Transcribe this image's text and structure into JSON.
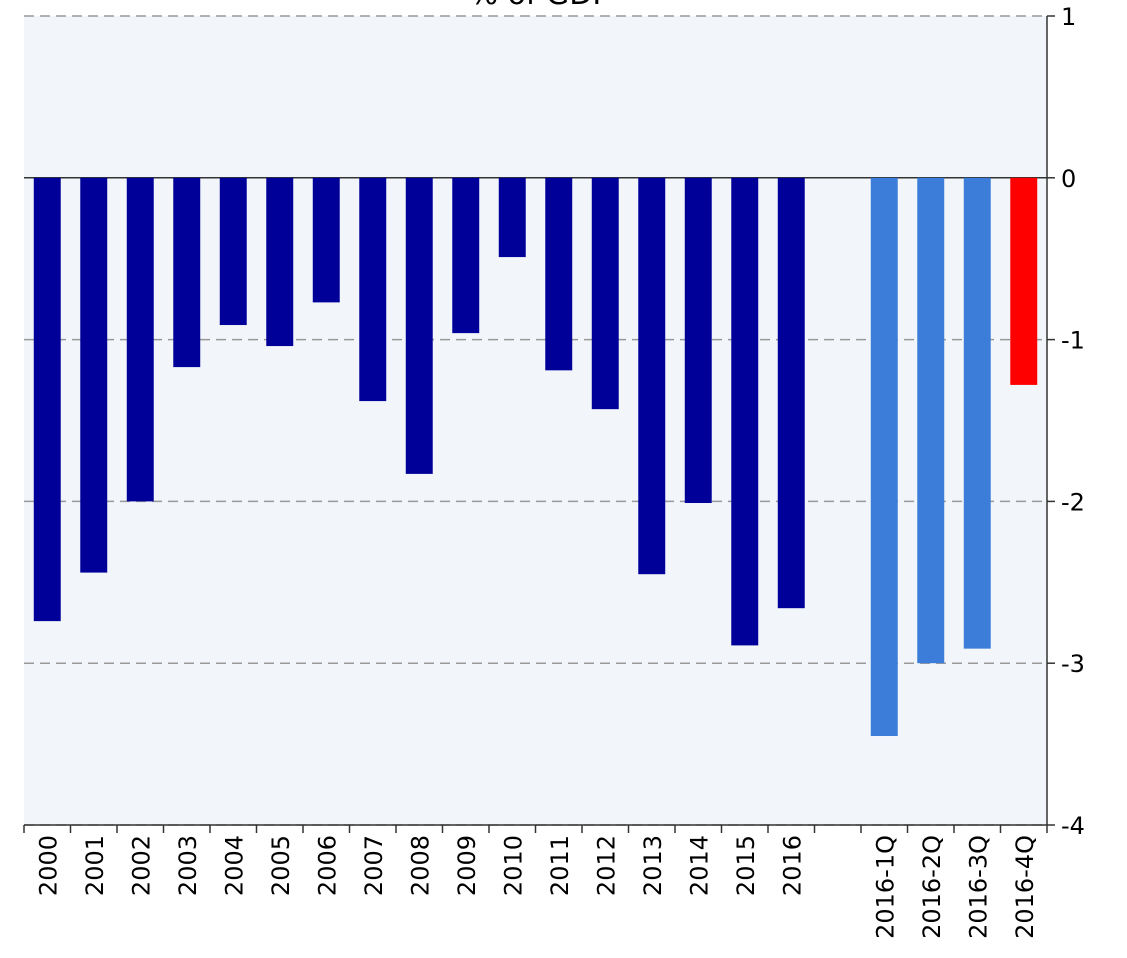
{
  "chart_data": {
    "type": "bar",
    "title": "% of GDP",
    "categories": [
      "2000",
      "2001",
      "2002",
      "2003",
      "2004",
      "2005",
      "2006",
      "2007",
      "2008",
      "2009",
      "2010",
      "2011",
      "2012",
      "2013",
      "2014",
      "2015",
      "2016",
      null,
      "2016-1Q",
      "2016-2Q",
      "2016-3Q",
      "2016-4Q"
    ],
    "values": [
      -2.74,
      -2.44,
      -2.0,
      -1.17,
      -0.91,
      -1.04,
      -0.77,
      -1.38,
      -1.83,
      -0.96,
      -0.49,
      -1.19,
      -1.43,
      -2.45,
      -2.01,
      -2.89,
      -2.66,
      null,
      -3.45,
      -3.0,
      -2.91,
      -1.28
    ],
    "colors": [
      "#000099",
      "#000099",
      "#000099",
      "#000099",
      "#000099",
      "#000099",
      "#000099",
      "#000099",
      "#000099",
      "#000099",
      "#000099",
      "#000099",
      "#000099",
      "#000099",
      "#000099",
      "#000099",
      "#000099",
      null,
      "#3b7dd8",
      "#3b7dd8",
      "#3b7dd8",
      "#ff0000"
    ],
    "ylim": [
      -4,
      1
    ],
    "yticks": [
      1,
      0,
      -1,
      -2,
      -3,
      -4
    ],
    "grid": true
  }
}
